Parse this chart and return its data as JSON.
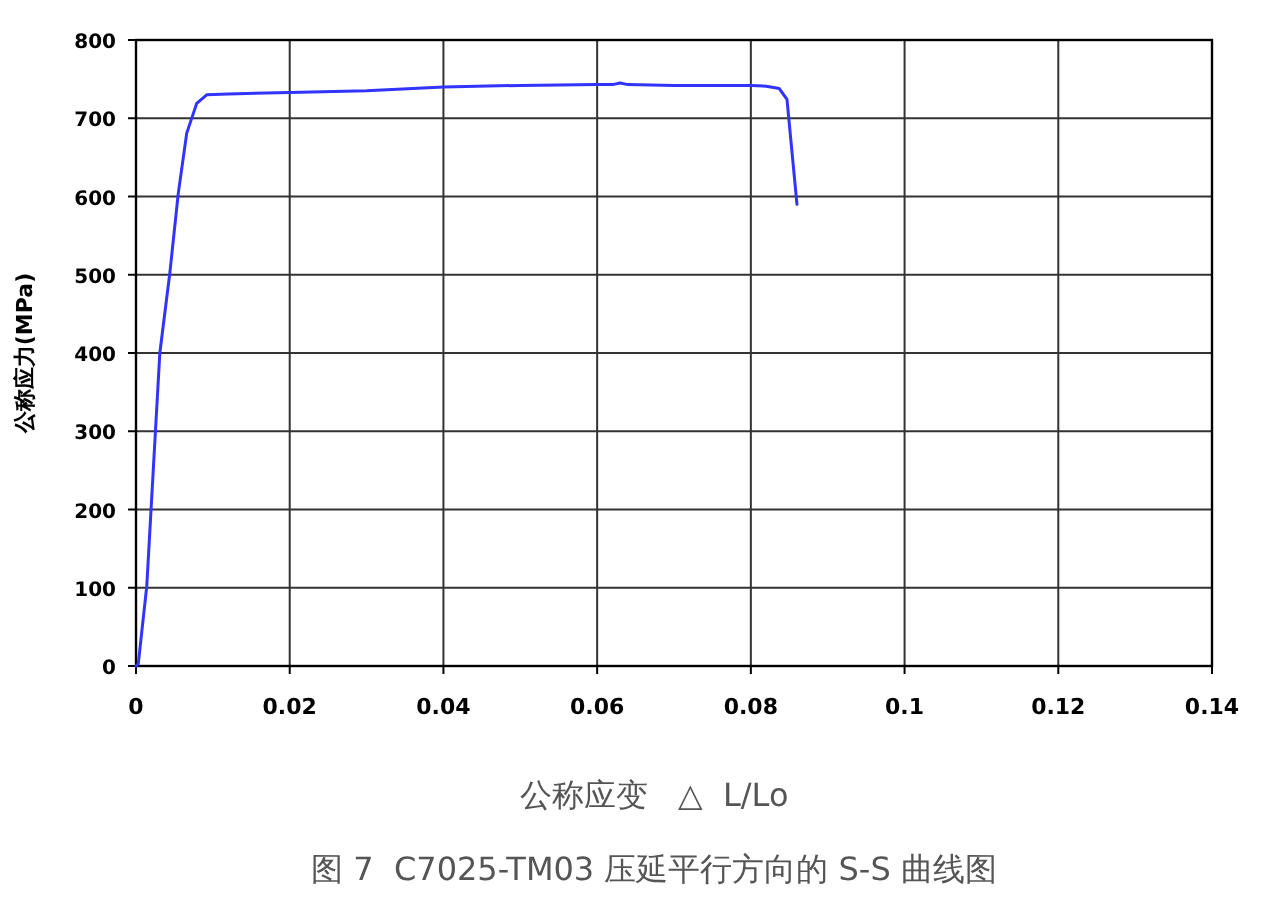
{
  "chart_data": {
    "type": "line",
    "title": "图 7  C7025-TM03 压延平行方向的 S-S 曲线图",
    "xlabel": "公称应变   △  L/Lo",
    "ylabel": "公称应力(MPa)",
    "series": [
      {
        "color": "#3333ff",
        "x": [
          0,
          0.0003,
          0.0014,
          0.0031,
          0.0044,
          0.0055,
          0.0066,
          0.0079,
          0.0092,
          0.012,
          0.02,
          0.03,
          0.04,
          0.05,
          0.06,
          0.062,
          0.063,
          0.064,
          0.07,
          0.08,
          0.082,
          0.0837,
          0.0847,
          0.086
        ],
        "values": [
          0,
          3,
          102,
          400,
          502,
          604,
          681,
          719,
          730,
          731,
          733,
          735,
          740,
          742,
          743,
          743,
          745,
          743,
          742,
          742,
          741,
          738,
          724,
          590
        ]
      }
    ],
    "xlim": [
      0,
      0.14
    ],
    "xticks": [
      0,
      0.02,
      0.04,
      0.06,
      0.08,
      0.1,
      0.12,
      0.14
    ],
    "ylim": [
      0,
      800
    ],
    "yticks": [
      0,
      100,
      200,
      300,
      400,
      500,
      600,
      700,
      800
    ],
    "grid": true,
    "line_style": "solid",
    "marker": "none"
  }
}
